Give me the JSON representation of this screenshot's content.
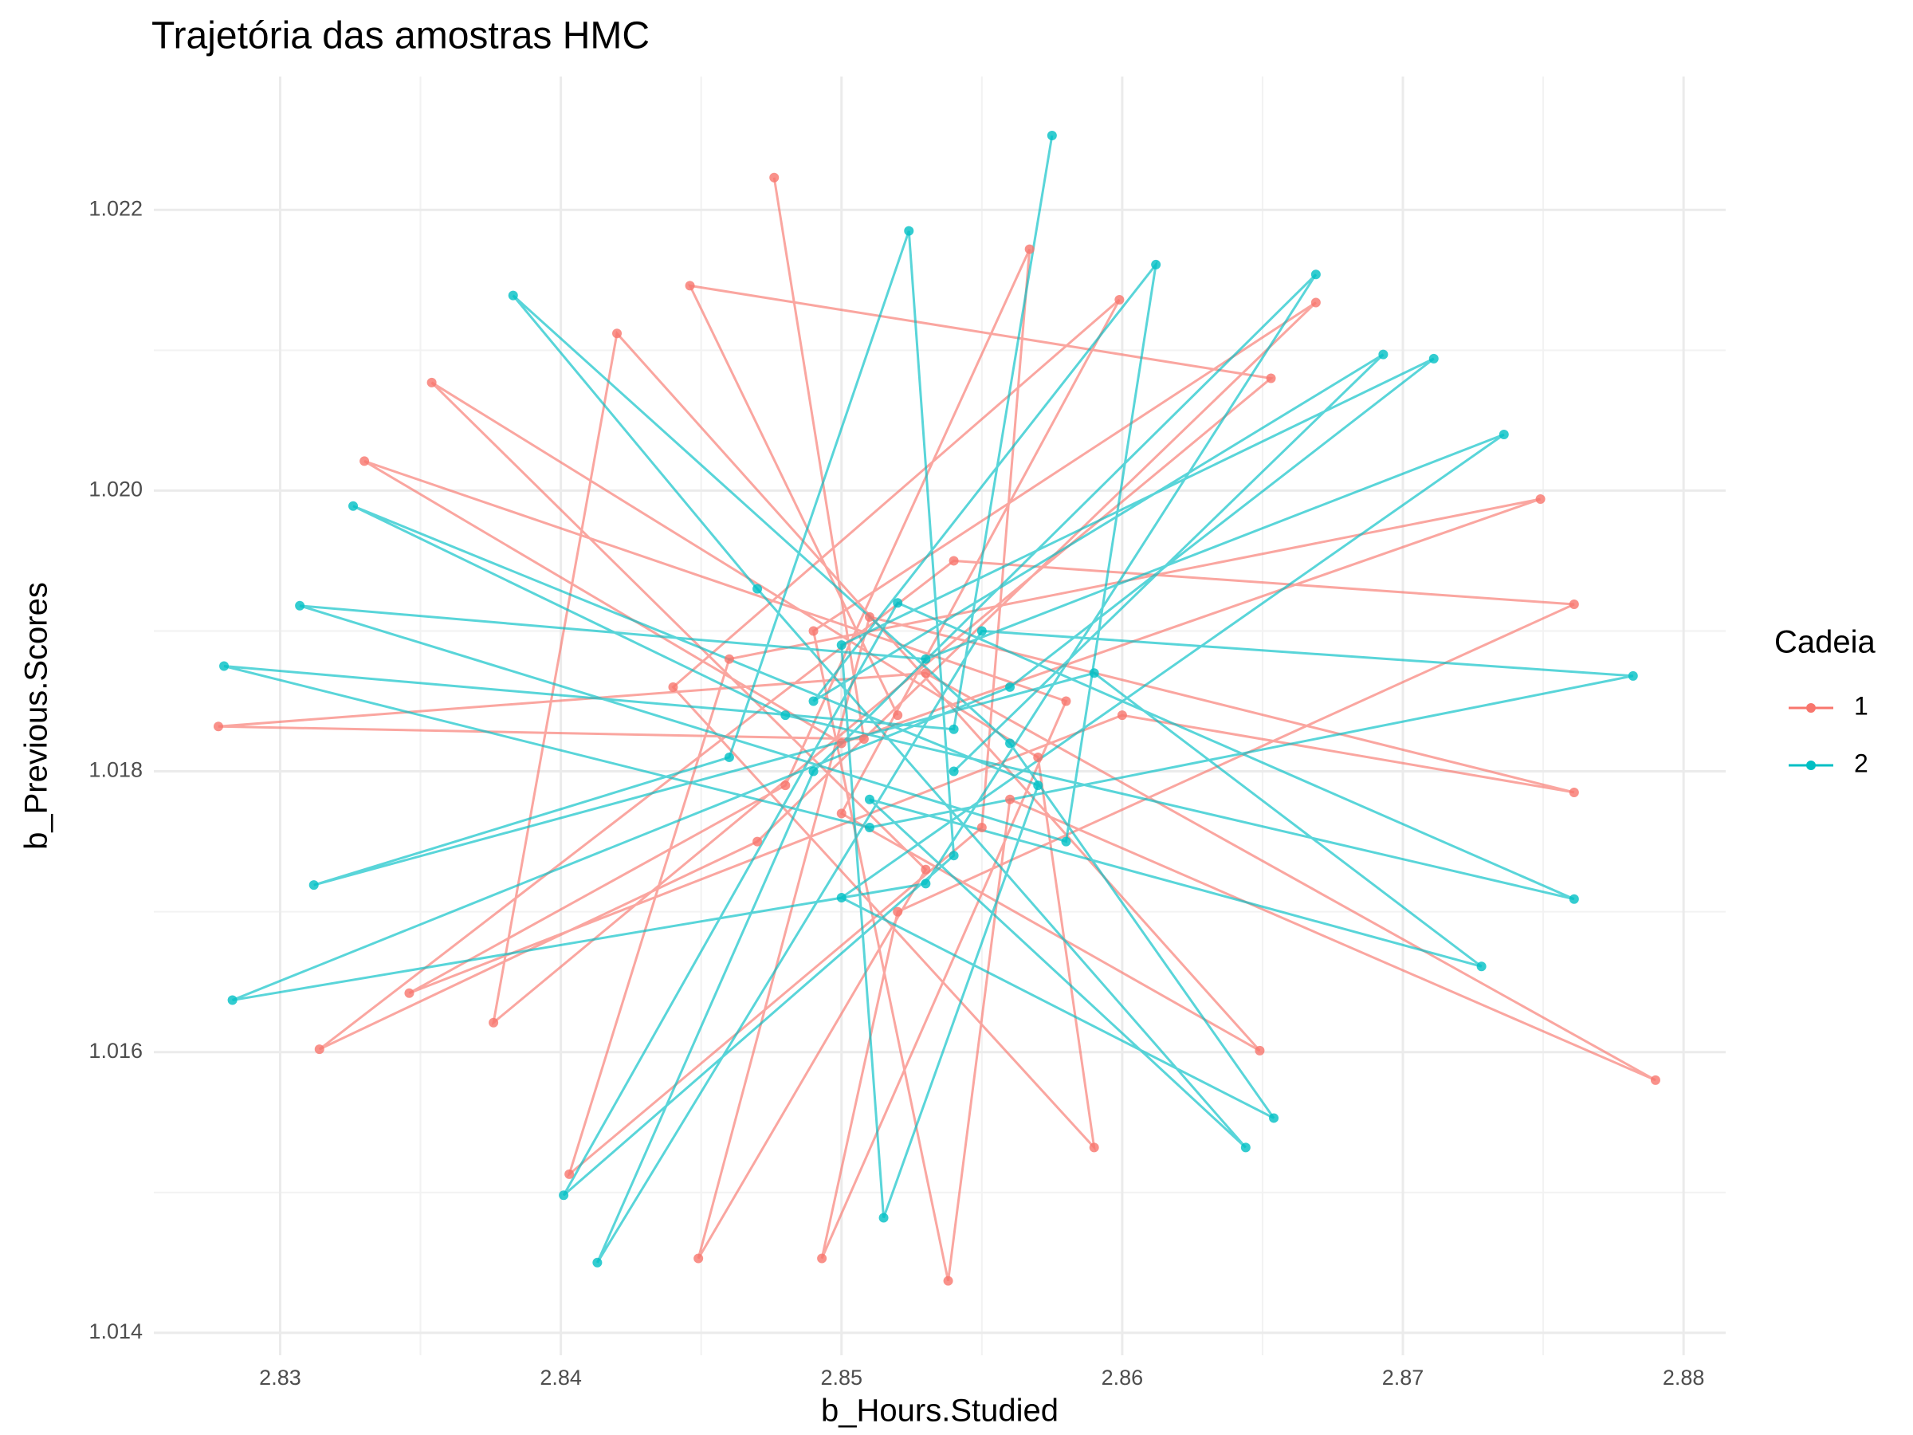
{
  "chart_data": {
    "type": "scatter",
    "connected": true,
    "title": "Trajetória das amostras HMC",
    "x_label": "b_Hours.Studied",
    "y_label": "b_Previous.Scores",
    "legend_title": "Cadeia",
    "legend": "right",
    "grid": true,
    "minor_grid": true,
    "xlim": [
      2.8255,
      2.8815
    ],
    "ylim": [
      1.01384,
      1.02295
    ],
    "xticks": [
      2.83,
      2.84,
      2.85,
      2.86,
      2.87,
      2.88
    ],
    "yticks": [
      1.014,
      1.016,
      1.018,
      {
        "value": 1.02,
        "label": "1.020"
      },
      1.022
    ],
    "series": [
      {
        "name": "1",
        "color": "#F8766D",
        "x": [
          2.8476,
          2.8508,
          2.8278,
          2.853,
          2.879,
          2.856,
          2.8538,
          2.849,
          2.8669,
          2.847,
          2.8314,
          2.854,
          2.8761,
          2.852,
          2.8493,
          2.858,
          2.833,
          2.85,
          2.8749,
          2.846,
          2.8403,
          2.855,
          2.8567,
          2.848,
          2.8346,
          2.86,
          2.8761,
          2.851,
          2.8449,
          2.853,
          2.8354,
          2.857,
          2.859,
          2.844,
          2.8599,
          2.85,
          2.8649,
          2.842,
          2.8376,
          2.8653,
          2.8446,
          2.852
        ],
        "values": [
          1.02223,
          1.01823,
          1.01832,
          1.0187,
          1.0158,
          1.0178,
          1.01437,
          1.019,
          1.02134,
          1.0175,
          1.01602,
          1.0195,
          1.01919,
          1.017,
          1.01453,
          1.0185,
          1.02021,
          1.0182,
          1.01994,
          1.0188,
          1.01513,
          1.0176,
          1.02172,
          1.0179,
          1.01642,
          1.0184,
          1.01785,
          1.0191,
          1.01453,
          1.0173,
          1.02077,
          1.0181,
          1.01532,
          1.0186,
          1.02136,
          1.0177,
          1.01601,
          1.02112,
          1.01621,
          1.0208,
          1.02146,
          1.0184
        ]
      },
      {
        "name": "2",
        "color": "#00BFC4",
        "x": [
          2.8575,
          2.854,
          2.828,
          2.851,
          2.8782,
          2.855,
          2.8413,
          2.849,
          2.8669,
          2.853,
          2.8283,
          2.856,
          2.8711,
          2.85,
          2.8515,
          2.857,
          2.8326,
          2.848,
          2.8761,
          2.852,
          2.8401,
          2.854,
          2.8524,
          2.846,
          2.8312,
          2.859,
          2.8728,
          2.851,
          2.8644,
          2.847,
          2.8383,
          2.856,
          2.8654,
          2.85,
          2.8736,
          2.853,
          2.8307,
          2.858,
          2.8612,
          2.849,
          2.8693,
          2.854
        ],
        "values": [
          1.02253,
          1.0183,
          1.01875,
          1.0176,
          1.01868,
          1.019,
          1.0145,
          1.018,
          1.02154,
          1.0172,
          1.01637,
          1.0186,
          1.02094,
          1.0189,
          1.01482,
          1.0179,
          1.01989,
          1.0184,
          1.01709,
          1.0192,
          1.01498,
          1.0174,
          1.02185,
          1.0181,
          1.01719,
          1.0187,
          1.01661,
          1.0178,
          1.01532,
          1.0193,
          1.02139,
          1.0182,
          1.01553,
          1.0171,
          1.0204,
          1.0188,
          1.01918,
          1.0175,
          1.02161,
          1.0185,
          1.02097,
          1.018
        ]
      }
    ]
  }
}
